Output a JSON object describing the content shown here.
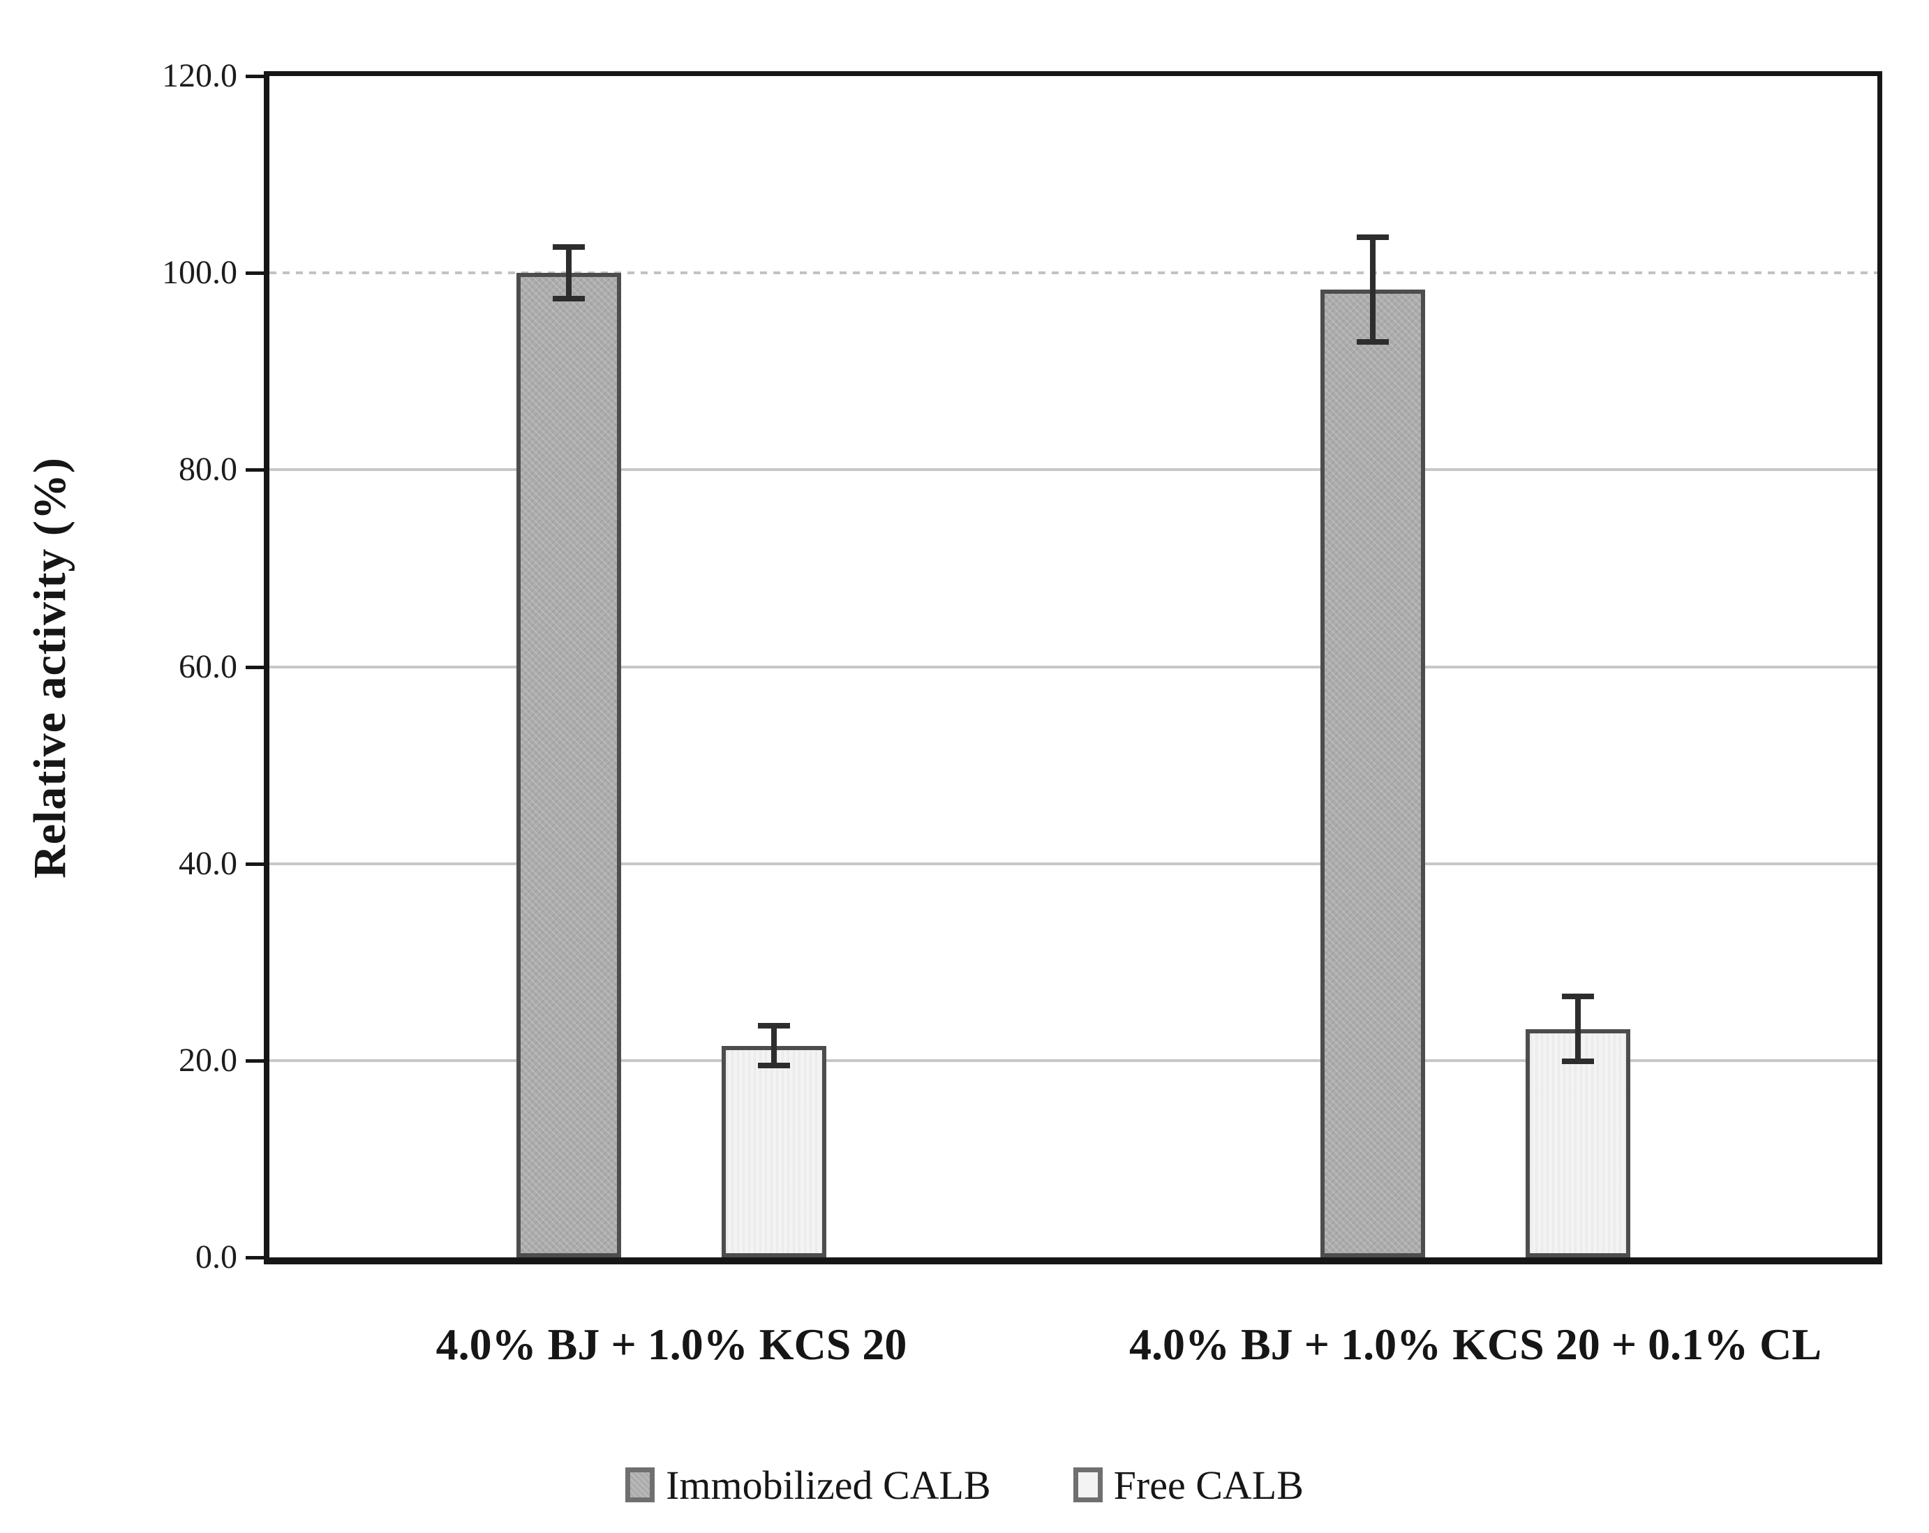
{
  "figure": {
    "background": "#ffffff",
    "text_color": "#161616",
    "plot_border_color": "#161616",
    "gridline_color": "#c7c7c7"
  },
  "chart_data": {
    "type": "bar",
    "title": "",
    "xlabel": "",
    "ylabel": "Relative activity (%)",
    "ylim": [
      0,
      120
    ],
    "ytick_values": [
      0,
      20,
      40,
      60,
      80,
      100,
      120
    ],
    "ytick_labels": [
      "0.0",
      "20.0",
      "40.0",
      "60.0",
      "80.0",
      "100.0",
      "120.0"
    ],
    "grid": "horizontal",
    "gridline_values": [
      20,
      40,
      60,
      80,
      100
    ],
    "dashed_gridline_values": [
      100
    ],
    "categories": [
      "4.0% BJ + 1.0% KCS 20",
      "4.0% BJ + 1.0% KCS 20 + 0.1% CL"
    ],
    "series": [
      {
        "name": "Immobilized CALB",
        "values": [
          100.0,
          98.3
        ],
        "errors": [
          2.9,
          5.6
        ],
        "fill": "#acacac",
        "border": "#4d4d4d"
      },
      {
        "name": "Free CALB",
        "values": [
          21.5,
          23.2
        ],
        "errors": [
          2.3,
          3.6
        ],
        "fill": "#f3f3f3",
        "border": "#4d4d4d"
      }
    ],
    "error_bar_color": "#2d2d2d",
    "legend_position": "bottom"
  }
}
